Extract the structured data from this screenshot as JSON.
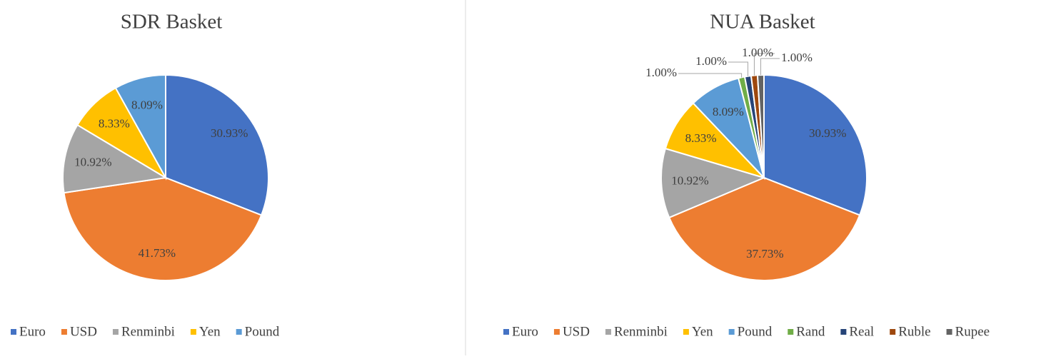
{
  "chart_data": [
    {
      "type": "pie",
      "title": "SDR Basket",
      "categories": [
        "Euro",
        "USD",
        "Renminbi",
        "Yen",
        "Pound"
      ],
      "values": [
        30.93,
        41.73,
        10.92,
        8.33,
        8.09
      ],
      "value_labels": [
        "30.93%",
        "41.73%",
        "10.92%",
        "8.33%",
        "8.09%"
      ],
      "colors": [
        "#4472c4",
        "#ed7d31",
        "#a5a5a5",
        "#ffc000",
        "#5b9bd5"
      ]
    },
    {
      "type": "pie",
      "title": "NUA Basket",
      "categories": [
        "Euro",
        "USD",
        "Renminbi",
        "Yen",
        "Pound",
        "Rand",
        "Real",
        "Ruble",
        "Rupee"
      ],
      "values": [
        30.93,
        37.73,
        10.92,
        8.33,
        8.09,
        1.0,
        1.0,
        1.0,
        1.0
      ],
      "value_labels": [
        "30.93%",
        "37.73%",
        "10.92%",
        "8.33%",
        "8.09%",
        "1.00%",
        "1.00%",
        "1.00%",
        "1.00%"
      ],
      "colors": [
        "#4472c4",
        "#ed7d31",
        "#a5a5a5",
        "#ffc000",
        "#5b9bd5",
        "#70ad47",
        "#264478",
        "#9e480e",
        "#636363"
      ]
    }
  ]
}
